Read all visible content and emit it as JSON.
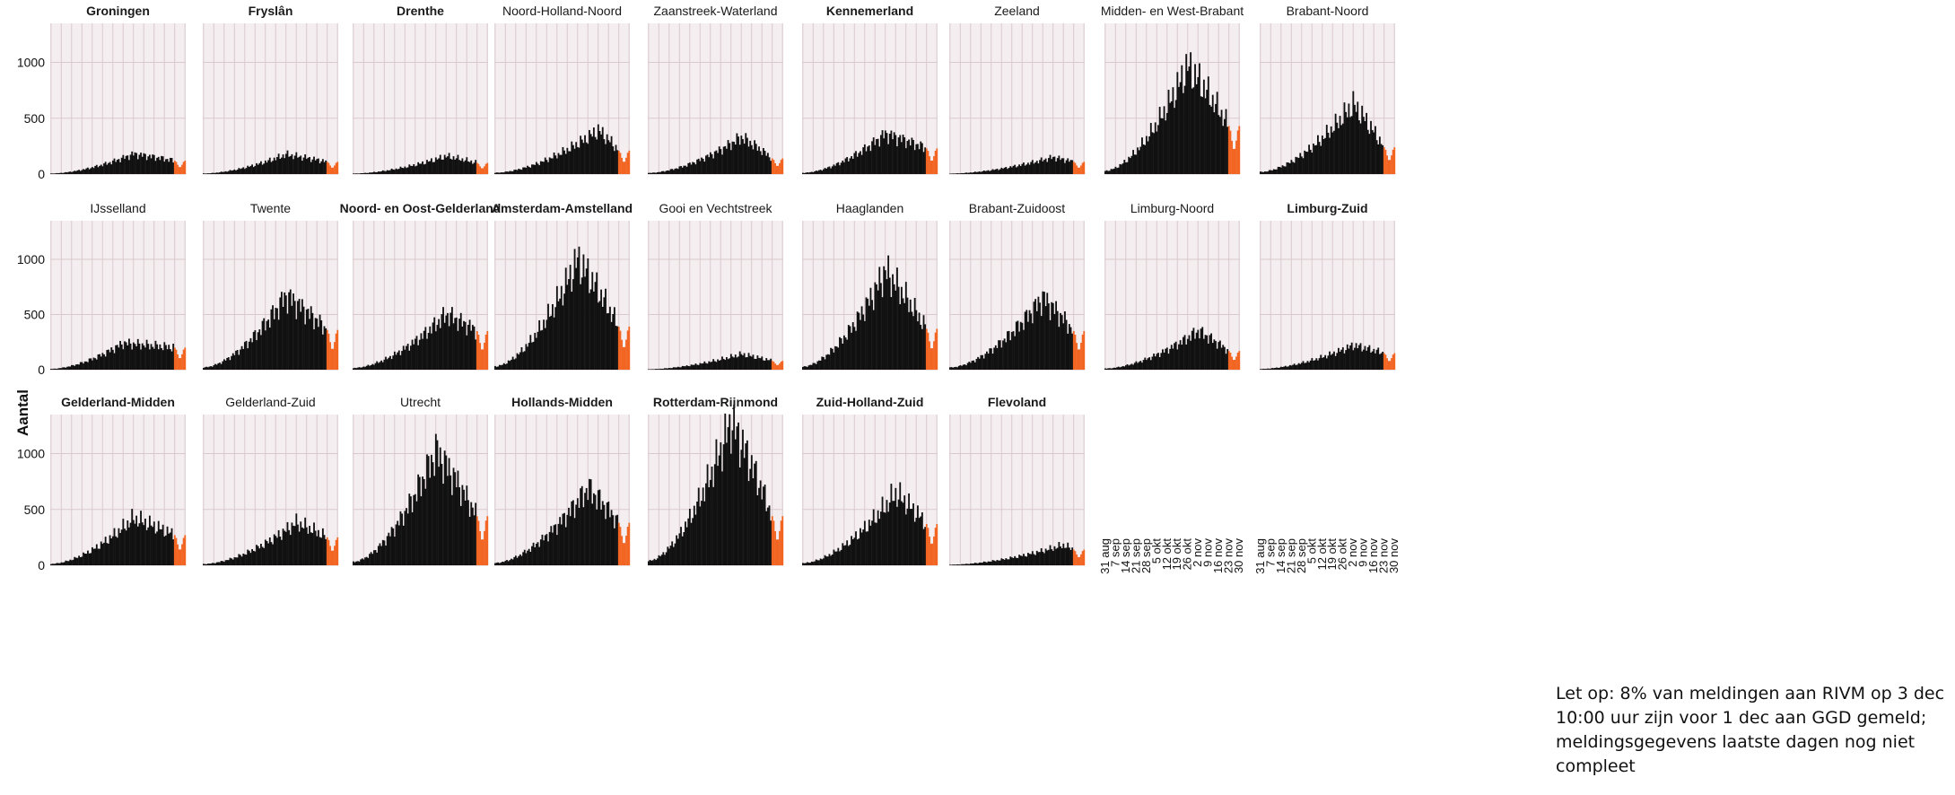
{
  "ylabel": "Aantal",
  "note": "Let op: 8% van meldingen aan RIVM op 3 dec 10:00 uur zijn voor 1 dec aan GGD gemeld; meldingsgegevens laatste dagen  nog niet compleet",
  "colors": {
    "reported": "#111111",
    "incomplete": "#f26522",
    "panel_bg": "#f4eef0",
    "grid": "#d9c9cd"
  },
  "chart_data": {
    "type": "bar",
    "layout": "small-multiples",
    "ylim": [
      0,
      1350
    ],
    "yticks": [
      0,
      500,
      1000
    ],
    "xticks": [
      "31 aug",
      "7 sep",
      "14 sep",
      "21 sep",
      "28 sep",
      "5 okt",
      "12 okt",
      "19 okt",
      "26 okt",
      "2 nov",
      "9 nov",
      "16 nov",
      "23 nov",
      "30 nov"
    ],
    "x_range": [
      "31 aug",
      "30 nov"
    ],
    "incomplete_from": "23 nov",
    "grid": true,
    "panels": [
      {
        "name": "Groningen",
        "bold": true,
        "peak": 180,
        "peak_date": "26 okt",
        "last": 120
      },
      {
        "name": "Fryslân",
        "bold": true,
        "peak": 175,
        "peak_date": "26 okt",
        "last": 110
      },
      {
        "name": "Drenthe",
        "bold": true,
        "peak": 160,
        "peak_date": "2 nov",
        "last": 100
      },
      {
        "name": "Noord-Holland-Noord",
        "bold": false,
        "peak": 390,
        "peak_date": "9 nov",
        "last": 210
      },
      {
        "name": "Zaanstreek-Waterland",
        "bold": false,
        "peak": 330,
        "peak_date": "2 nov",
        "last": 140
      },
      {
        "name": "Kennemerland",
        "bold": true,
        "peak": 360,
        "peak_date": "26 okt",
        "last": 230
      },
      {
        "name": "Zeeland",
        "bold": false,
        "peak": 150,
        "peak_date": "9 nov",
        "last": 110
      },
      {
        "name": "Midden- en West-Brabant",
        "bold": false,
        "peak": 960,
        "peak_date": "26 okt",
        "last": 430
      },
      {
        "name": "Brabant-Noord",
        "bold": false,
        "peak": 620,
        "peak_date": "2 nov",
        "last": 240
      },
      {
        "name": "IJsselland",
        "bold": false,
        "peak": 240,
        "peak_date": "19 okt",
        "last": 200
      },
      {
        "name": "Twente",
        "bold": false,
        "peak": 670,
        "peak_date": "26 okt",
        "last": 360
      },
      {
        "name": "Noord- en Oost-Gelderland",
        "bold": true,
        "peak": 500,
        "peak_date": "2 nov",
        "last": 350
      },
      {
        "name": "Amsterdam-Amstelland",
        "bold": true,
        "peak": 990,
        "peak_date": "26 okt",
        "last": 390
      },
      {
        "name": "Gooi en Vechtstreek",
        "bold": false,
        "peak": 140,
        "peak_date": "2 nov",
        "last": 80
      },
      {
        "name": "Haaglanden",
        "bold": false,
        "peak": 890,
        "peak_date": "26 okt",
        "last": 370
      },
      {
        "name": "Brabant-Zuidoost",
        "bold": false,
        "peak": 650,
        "peak_date": "2 nov",
        "last": 350
      },
      {
        "name": "Limburg-Noord",
        "bold": false,
        "peak": 350,
        "peak_date": "2 nov",
        "last": 170
      },
      {
        "name": "Limburg-Zuid",
        "bold": true,
        "peak": 220,
        "peak_date": "2 nov",
        "last": 150
      },
      {
        "name": "Gelderland-Midden",
        "bold": true,
        "peak": 420,
        "peak_date": "26 okt",
        "last": 270
      },
      {
        "name": "Gelderland-Zuid",
        "bold": false,
        "peak": 380,
        "peak_date": "2 nov",
        "last": 250
      },
      {
        "name": "Utrecht",
        "bold": false,
        "peak": 1020,
        "peak_date": "26 okt",
        "last": 440
      },
      {
        "name": "Hollands-Midden",
        "bold": true,
        "peak": 690,
        "peak_date": "2 nov",
        "last": 380
      },
      {
        "name": "Rotterdam-Rijnmond",
        "bold": true,
        "peak": 1280,
        "peak_date": "26 okt",
        "last": 440
      },
      {
        "name": "Zuid-Holland-Zuid",
        "bold": true,
        "peak": 640,
        "peak_date": "2 nov",
        "last": 370
      },
      {
        "name": "Flevoland",
        "bold": true,
        "peak": 180,
        "peak_date": "16 nov",
        "last": 140
      }
    ]
  }
}
